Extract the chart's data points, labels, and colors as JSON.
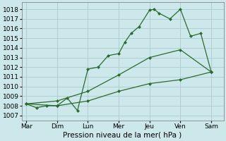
{
  "bg_color": "#cce8ea",
  "grid_color": "#aacccc",
  "line_color": "#2d6a2d",
  "xlabel": "Pression niveau de la mer( hPa )",
  "ylim": [
    1006.5,
    1018.7
  ],
  "yticks": [
    1007,
    1008,
    1009,
    1010,
    1011,
    1012,
    1013,
    1014,
    1015,
    1016,
    1017,
    1018
  ],
  "xtick_labels": [
    "Mar",
    "Dim",
    "Lun",
    "Mer",
    "Jeu",
    "Ven",
    "Sam"
  ],
  "xlim": [
    -0.15,
    6.4
  ],
  "series1_x": [
    0,
    1,
    2,
    3,
    4,
    5,
    6
  ],
  "series1_y": [
    1008.2,
    1008.0,
    1008.5,
    1009.5,
    1010.3,
    1010.7,
    1011.5
  ],
  "series2_x": [
    0,
    1,
    2,
    3,
    4,
    5,
    6
  ],
  "series2_y": [
    1008.2,
    1008.5,
    1009.5,
    1011.2,
    1013.0,
    1013.8,
    1011.5
  ],
  "series3_x": [
    0,
    0.33,
    0.66,
    1.0,
    1.33,
    1.66,
    2.0,
    2.33,
    2.66,
    3.0,
    3.2,
    3.4,
    3.66,
    4.0,
    4.15,
    4.3,
    4.66,
    5.0,
    5.33,
    5.66,
    6.0
  ],
  "series3_y": [
    1008.2,
    1007.8,
    1008.0,
    1008.0,
    1008.8,
    1007.5,
    1011.8,
    1012.0,
    1013.2,
    1013.4,
    1014.6,
    1015.5,
    1016.2,
    1017.9,
    1018.0,
    1017.6,
    1017.0,
    1018.0,
    1015.2,
    1015.5,
    1011.5
  ]
}
